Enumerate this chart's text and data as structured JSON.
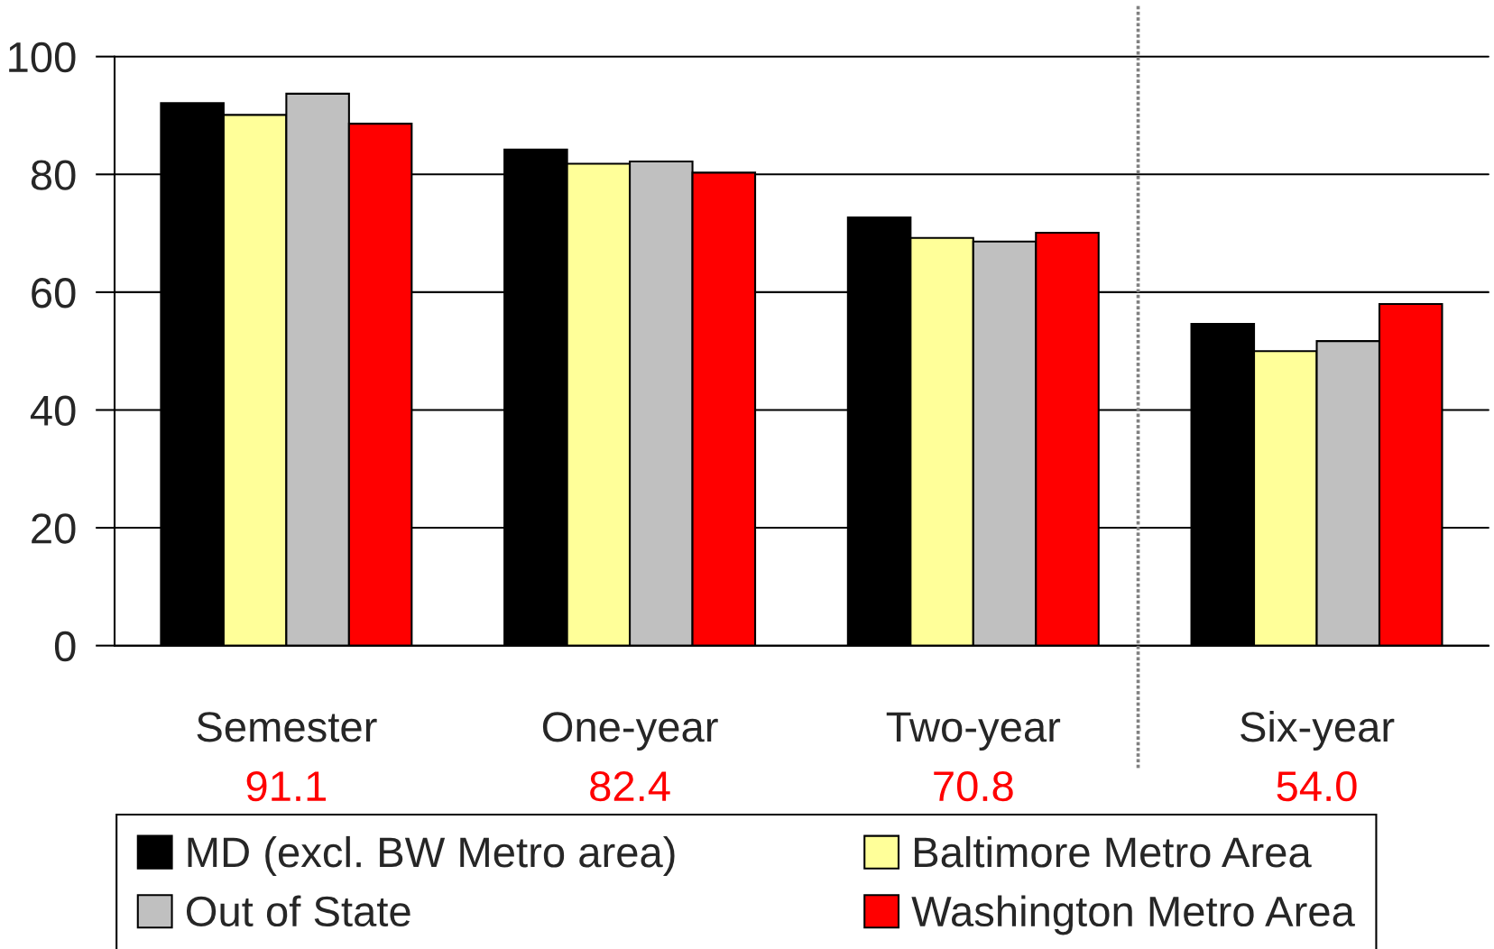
{
  "chart_data": {
    "type": "bar",
    "categories": [
      "Semester",
      "One-year",
      "Two-year",
      "Six-year"
    ],
    "series": [
      {
        "name": "MD (excl. BW Metro area)",
        "color": "#000000",
        "values": [
          92.1,
          84.2,
          72.7,
          54.6
        ]
      },
      {
        "name": "Baltimore Metro Area",
        "color": "#ffff99",
        "values": [
          90.1,
          81.8,
          69.2,
          50.0
        ]
      },
      {
        "name": "Out of State",
        "color": "#c0c0c0",
        "values": [
          93.7,
          82.2,
          68.6,
          51.7
        ]
      },
      {
        "name": "Washington Metro Area",
        "color": "#ff0000",
        "values": [
          88.6,
          80.3,
          70.1,
          58.0
        ]
      }
    ],
    "ylim": [
      0,
      100
    ],
    "yticks": [
      0,
      20,
      40,
      60,
      80,
      100
    ],
    "grid": "y",
    "legend": "bottom",
    "annotations": [
      "91.1",
      "82.4",
      "70.8",
      "54.0"
    ]
  }
}
